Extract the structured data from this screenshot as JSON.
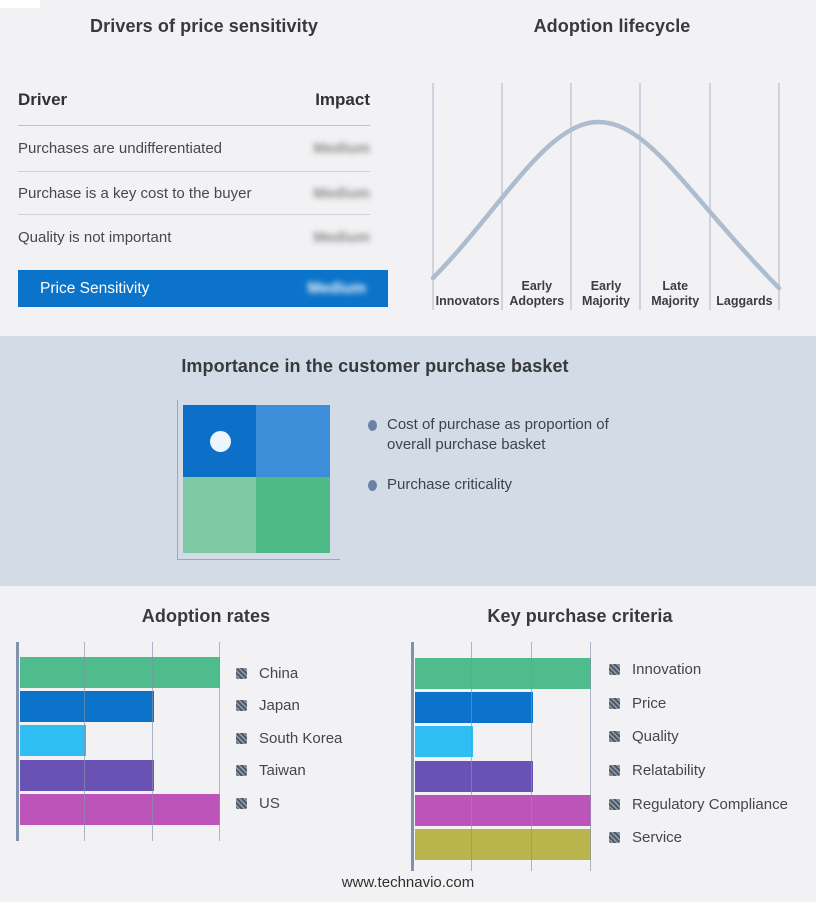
{
  "drivers_panel": {
    "title": "Drivers of price sensitivity",
    "columns": {
      "driver": "Driver",
      "impact": "Impact"
    },
    "rows": [
      {
        "driver": "Purchases are undifferentiated",
        "impact": "Medium"
      },
      {
        "driver": "Purchase is a key cost to the buyer",
        "impact": "Medium"
      },
      {
        "driver": "Quality is not important",
        "impact": "Medium"
      }
    ],
    "highlight_row": {
      "driver": "Price Sensitivity",
      "impact": "Medium"
    },
    "highlight_color": "#0b73c9",
    "impact_values_blurred": true
  },
  "basket_panel": {
    "title": "Importance in the customer purchase basket",
    "bullets": [
      "Cost of purchase as proportion of overall purchase basket",
      "Purchase criticality"
    ],
    "matrix": {
      "top_left": "#0d70c8",
      "top_right": "#3d8ed8",
      "bottom_left": "#7fc8a4",
      "bottom_right": "#4eba85",
      "marker": {
        "quadrant": "top-left",
        "color": "#ecf5fb"
      }
    }
  },
  "footer": {
    "website": "www.technavio.com"
  },
  "chart_data": [
    {
      "type": "bar",
      "orientation": "horizontal",
      "title": "Adoption rates",
      "categories": [
        "China",
        "Japan",
        "South Korea",
        "Taiwan",
        "US"
      ],
      "values_pct": [
        100,
        67,
        33,
        67,
        100
      ],
      "colors": [
        "#4fbc8d",
        "#0b73c9",
        "#2fbef4",
        "#6952b3",
        "#bd54b9"
      ],
      "xlim": [
        0,
        100
      ],
      "gridlines_pct": [
        0,
        33.3,
        66.7,
        100
      ],
      "grid": "vertical lines over bars",
      "legend_position": "right",
      "legend_marker": "hatched-square"
    },
    {
      "type": "bar",
      "orientation": "horizontal",
      "title": "Key purchase criteria",
      "categories": [
        "Innovation",
        "Price",
        "Quality",
        "Relatability",
        "Regulatory Compliance",
        "Service"
      ],
      "values_pct": [
        100,
        67,
        33,
        67,
        100,
        100
      ],
      "colors": [
        "#4fbc8d",
        "#0b73c9",
        "#2fbef4",
        "#6952b3",
        "#bd54b9",
        "#b9b44c"
      ],
      "xlim": [
        0,
        100
      ],
      "gridlines_pct": [
        0,
        33.3,
        66.7,
        100
      ],
      "grid": "vertical lines over bars",
      "legend_position": "right",
      "legend_marker": "hatched-square"
    },
    {
      "type": "line",
      "title": "Adoption lifecycle",
      "x_categories": [
        "Innovators",
        "Early Adopters",
        "Early Majority",
        "Late Majority",
        "Laggards"
      ],
      "shape": "bell curve rising from Innovators, peaking at Early Majority, falling through Laggards",
      "curve_color": "#aebccf",
      "gridline_color": "#a9b4c6"
    }
  ]
}
